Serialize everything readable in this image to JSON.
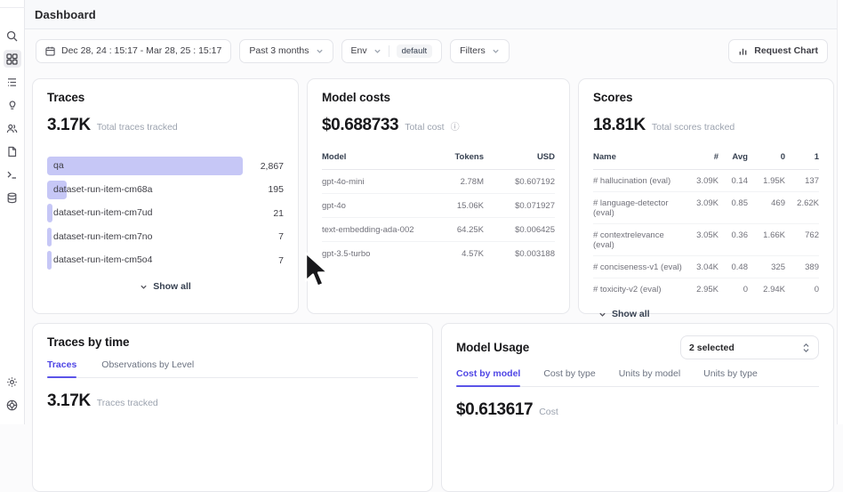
{
  "header": {
    "title": "Dashboard"
  },
  "sidebar": {
    "icons": [
      "search-icon",
      "dashboard-icon",
      "tracing-icon",
      "lightbulb-icon",
      "users-icon",
      "datasets-icon",
      "terminal-icon",
      "database-icon",
      "settings-icon",
      "support-icon"
    ]
  },
  "filters": {
    "date_range": "Dec 28, 24 : 15:17 - Mar 28, 25 : 15:17",
    "time_preset": "Past 3 months",
    "env_label": "Env",
    "env_value": "default",
    "filters_label": "Filters",
    "request_chart_label": "Request Chart"
  },
  "colors": {
    "accent": "#4f46e5",
    "bar_fill": "#c6c7f6"
  },
  "traces_card": {
    "title": "Traces",
    "metric": "3.17K",
    "metric_caption": "Total traces tracked",
    "show_all_label": "Show all",
    "rows": [
      {
        "label": "qa",
        "value": "2,867",
        "pct": 100
      },
      {
        "label": "dataset-run-item-cm68a",
        "value": "195",
        "pct": 10
      },
      {
        "label": "dataset-run-item-cm7ud",
        "value": "21",
        "pct": 2.6
      },
      {
        "label": "dataset-run-item-cm7no",
        "value": "7",
        "pct": 2.2
      },
      {
        "label": "dataset-run-item-cm5o4",
        "value": "7",
        "pct": 2.2
      }
    ]
  },
  "model_costs_card": {
    "title": "Model costs",
    "metric": "$0.688733",
    "metric_caption": "Total cost",
    "columns": {
      "model": "Model",
      "tokens": "Tokens",
      "usd": "USD"
    },
    "rows": [
      {
        "model": "gpt-4o-mini",
        "tokens": "2.78M",
        "usd": "$0.607192"
      },
      {
        "model": "gpt-4o",
        "tokens": "15.06K",
        "usd": "$0.071927"
      },
      {
        "model": "text-embedding-ada-002",
        "tokens": "64.25K",
        "usd": "$0.006425"
      },
      {
        "model": "gpt-3.5-turbo",
        "tokens": "4.57K",
        "usd": "$0.003188"
      }
    ]
  },
  "scores_card": {
    "title": "Scores",
    "metric": "18.81K",
    "metric_caption": "Total scores tracked",
    "show_all_label": "Show all",
    "columns": {
      "name": "Name",
      "count": "#",
      "avg": "Avg",
      "zero": "0",
      "one": "1"
    },
    "rows": [
      {
        "name": "# hallucination (eval)",
        "count": "3.09K",
        "avg": "0.14",
        "zero": "1.95K",
        "one": "137"
      },
      {
        "name": "# language-detector (eval)",
        "count": "3.09K",
        "avg": "0.85",
        "zero": "469",
        "one": "2.62K"
      },
      {
        "name": "# contextrelevance (eval)",
        "count": "3.05K",
        "avg": "0.36",
        "zero": "1.66K",
        "one": "762"
      },
      {
        "name": "# conciseness-v1 (eval)",
        "count": "3.04K",
        "avg": "0.48",
        "zero": "325",
        "one": "389"
      },
      {
        "name": "# toxicity-v2 (eval)",
        "count": "2.95K",
        "avg": "0",
        "zero": "2.94K",
        "one": "0"
      }
    ]
  },
  "traces_by_time_card": {
    "title": "Traces by time",
    "tabs": {
      "traces": "Traces",
      "observations": "Observations by Level"
    },
    "active_tab": "Traces",
    "metric": "3.17K",
    "metric_caption": "Traces tracked"
  },
  "model_usage_card": {
    "title": "Model Usage",
    "selector_value": "2 selected",
    "tabs": {
      "cost_by_model": "Cost by model",
      "cost_by_type": "Cost by type",
      "units_by_model": "Units by model",
      "units_by_type": "Units by type"
    },
    "active_tab": "Cost by model",
    "metric": "$0.613617",
    "metric_caption": "Cost"
  }
}
